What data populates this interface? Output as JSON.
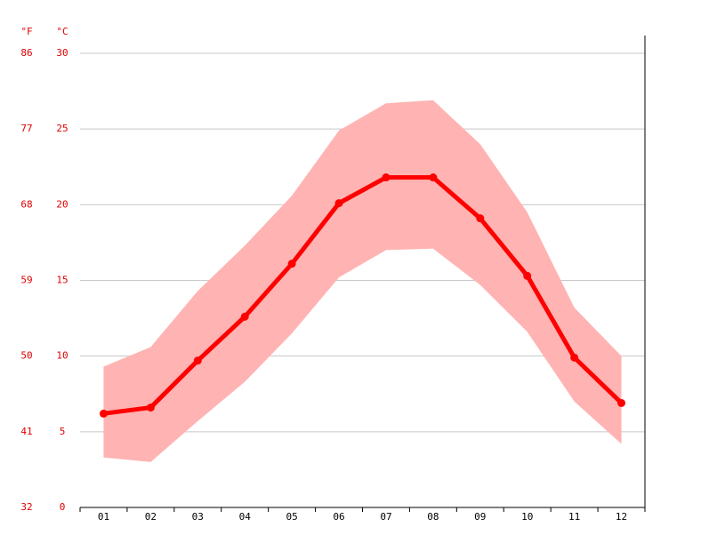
{
  "chart_data": {
    "type": "line",
    "categories": [
      "01",
      "02",
      "03",
      "04",
      "05",
      "06",
      "07",
      "08",
      "09",
      "10",
      "11",
      "12"
    ],
    "series": [
      {
        "color": "#ff0000",
        "values": [
          6.2,
          6.6,
          9.7,
          12.6,
          16.1,
          20.1,
          21.8,
          21.8,
          19.1,
          15.3,
          9.9,
          6.9
        ]
      }
    ],
    "band": {
      "color": "#ffb3b3",
      "upper": [
        9.3,
        10.6,
        14.3,
        17.3,
        20.6,
        24.9,
        26.7,
        26.9,
        24.0,
        19.5,
        13.2,
        10.0
      ],
      "lower": [
        3.3,
        3.0,
        5.7,
        8.3,
        11.5,
        15.2,
        17.0,
        17.1,
        14.7,
        11.6,
        7.0,
        4.2
      ]
    },
    "y_unit": "°C",
    "y2_unit": "°F",
    "ylim": [
      0,
      30
    ],
    "yticks": [
      0,
      5,
      10,
      15,
      20,
      25,
      30
    ],
    "y2lim": [
      32,
      86
    ],
    "y2ticks": [
      32,
      41,
      50,
      59,
      68,
      77,
      86
    ],
    "grid": true
  }
}
